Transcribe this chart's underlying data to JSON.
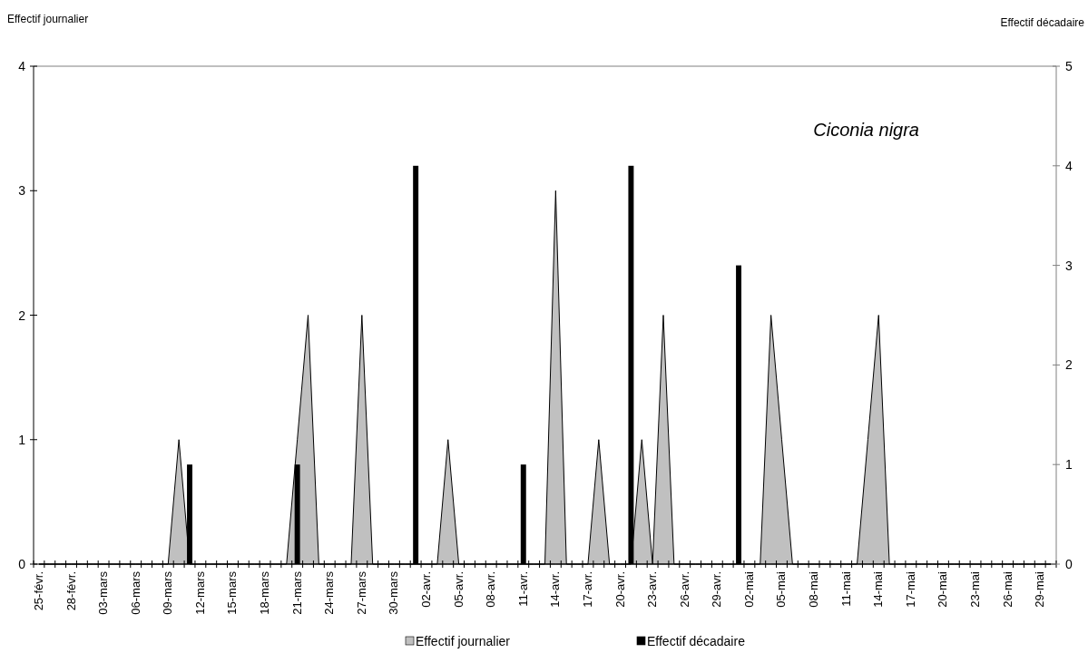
{
  "chart_data": {
    "type": "area",
    "ylabel": "Effectif journalier",
    "y2label": "Effectif décadaire",
    "annotations": [
      "Ciconia nigra"
    ],
    "categories": [
      "25-févr.",
      null,
      null,
      "28-févr.",
      null,
      null,
      "03-mars",
      null,
      null,
      "06-mars",
      null,
      null,
      "09-mars",
      null,
      null,
      "12-mars",
      null,
      null,
      "15-mars",
      null,
      null,
      "18-mars",
      null,
      null,
      "21-mars",
      null,
      null,
      "24-mars",
      null,
      null,
      "27-mars",
      null,
      null,
      "30-mars",
      null,
      null,
      "02-avr.",
      null,
      null,
      "05-avr.",
      null,
      null,
      "08-avr.",
      null,
      null,
      "11-avr.",
      null,
      null,
      "14-avr.",
      null,
      null,
      "17-avr.",
      null,
      null,
      "20-avr.",
      null,
      null,
      "23-avr.",
      null,
      null,
      "26-avr.",
      null,
      null,
      "29-avr.",
      null,
      null,
      "02-mai",
      null,
      null,
      "05-mai",
      null,
      null,
      "08-mai",
      null,
      null,
      "11-mai",
      null,
      null,
      "14-mai",
      null,
      null,
      "17-mai",
      null,
      null,
      "20-mai",
      null,
      null,
      "23-mai",
      null,
      null,
      "26-mai",
      null,
      null,
      "29-mai",
      null
    ],
    "series": [
      {
        "name": "Effectif journalier",
        "color": "#c0c0c0",
        "values": [
          0,
          0,
          0,
          0,
          0,
          0,
          0,
          0,
          0,
          0,
          0,
          0,
          0,
          1,
          0,
          0,
          0,
          0,
          0,
          0,
          0,
          0,
          0,
          0,
          1,
          2,
          0,
          0,
          0,
          0,
          2,
          0,
          0,
          0,
          0,
          0,
          0,
          0,
          1,
          0,
          0,
          0,
          0,
          0,
          0,
          0,
          0,
          0,
          3,
          0,
          0,
          0,
          1,
          0,
          0,
          0,
          1,
          0,
          2,
          0,
          0,
          0,
          0,
          0,
          0,
          0,
          0,
          0,
          2,
          1,
          0,
          0,
          0,
          0,
          0,
          0,
          0,
          1,
          2,
          0,
          0,
          0,
          0,
          0,
          0,
          0,
          0,
          0,
          0,
          0,
          0,
          0,
          0,
          0,
          0
        ]
      },
      {
        "name": "Effectif décadaire",
        "type": "bar",
        "axis": "y2",
        "color": "#000000",
        "values": [
          null,
          null,
          null,
          null,
          null,
          null,
          null,
          null,
          null,
          null,
          null,
          null,
          null,
          null,
          1,
          null,
          null,
          null,
          null,
          null,
          null,
          null,
          null,
          null,
          1,
          null,
          null,
          null,
          null,
          null,
          null,
          null,
          null,
          null,
          null,
          4,
          null,
          null,
          null,
          null,
          null,
          null,
          null,
          null,
          null,
          1,
          null,
          null,
          null,
          null,
          null,
          null,
          null,
          null,
          null,
          4,
          null,
          null,
          null,
          null,
          null,
          null,
          null,
          null,
          null,
          3,
          null,
          null,
          null,
          null,
          null,
          null,
          null,
          null,
          null,
          null,
          null,
          null,
          null,
          null,
          null,
          null,
          null,
          null,
          null,
          null,
          null,
          null,
          null,
          null,
          null,
          null,
          null,
          null,
          null
        ]
      }
    ],
    "ylim": [
      0,
      4
    ],
    "yticks": [
      0,
      1,
      2,
      3,
      4
    ],
    "y2lim": [
      0,
      5
    ],
    "y2ticks": [
      0,
      1,
      2,
      3,
      4,
      5
    ],
    "legend": "bottom"
  }
}
